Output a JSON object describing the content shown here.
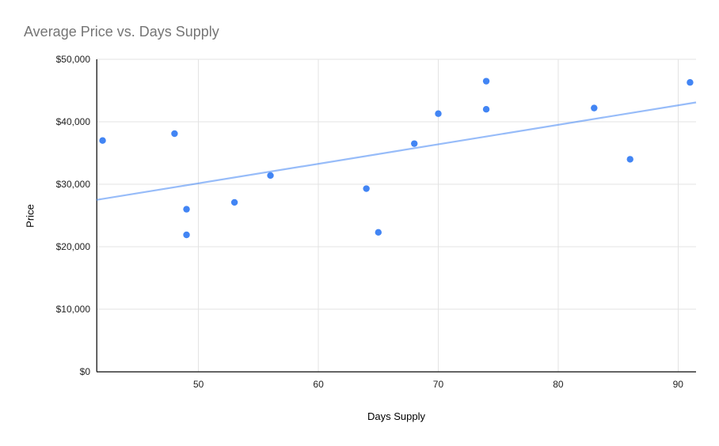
{
  "chart_data": {
    "type": "scatter",
    "title": "Average Price vs. Days Supply",
    "xlabel": "Days Supply",
    "ylabel": "Price",
    "xlim": [
      41.5,
      91.5
    ],
    "ylim": [
      0,
      50000
    ],
    "x_ticks": [
      50,
      60,
      70,
      80,
      90
    ],
    "x_tick_labels": [
      "50",
      "60",
      "70",
      "80",
      "90"
    ],
    "y_ticks": [
      0,
      10000,
      20000,
      30000,
      40000,
      50000
    ],
    "y_tick_labels": [
      "$0",
      "$10,000",
      "$20,000",
      "$30,000",
      "$40,000",
      "$50,000"
    ],
    "grid": true,
    "legend": false,
    "series": [
      {
        "name": "Price",
        "points": [
          {
            "x": 42,
            "y": 37000
          },
          {
            "x": 48,
            "y": 38100
          },
          {
            "x": 49,
            "y": 26000
          },
          {
            "x": 49,
            "y": 21900
          },
          {
            "x": 53,
            "y": 27100
          },
          {
            "x": 56,
            "y": 31400
          },
          {
            "x": 64,
            "y": 29300
          },
          {
            "x": 65,
            "y": 22300
          },
          {
            "x": 68,
            "y": 36500
          },
          {
            "x": 70,
            "y": 41300
          },
          {
            "x": 74,
            "y": 46500
          },
          {
            "x": 74,
            "y": 42000
          },
          {
            "x": 83,
            "y": 42200
          },
          {
            "x": 86,
            "y": 34000
          },
          {
            "x": 91,
            "y": 46300
          }
        ]
      }
    ],
    "trendline": {
      "x1": 41.5,
      "y1": 27500,
      "x2": 91.5,
      "y2": 43100
    },
    "colors": {
      "point": "#4285f4",
      "trendline": "rgba(66,133,244,0.55)",
      "grid": "#e3e3e3",
      "axis": "#333333",
      "tick_text": "#222222",
      "title_text": "#757575"
    }
  }
}
